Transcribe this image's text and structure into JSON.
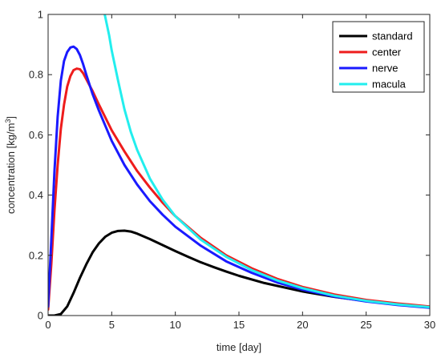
{
  "chart_data": {
    "type": "line",
    "title": "",
    "xlabel": "time [day]",
    "ylabel": "concentration [kg/m",
    "ylabel_superscript": "3",
    "ylabel_suffix": "]",
    "xlim": [
      0,
      30
    ],
    "ylim": [
      0,
      1
    ],
    "xticks": [
      "0",
      "5",
      "10",
      "15",
      "20",
      "25",
      "30"
    ],
    "yticks": [
      "0",
      "0.2",
      "0.4",
      "0.6",
      "0.8",
      "1"
    ],
    "grid": false,
    "legend_position": "top-right",
    "series": [
      {
        "name": "standard",
        "color": "#000000",
        "x": [
          0,
          0.5,
          1,
          1.5,
          2,
          2.5,
          3,
          3.5,
          4,
          4.5,
          5,
          5.5,
          6,
          6.5,
          7,
          8,
          9,
          10,
          11,
          12,
          13,
          14,
          15,
          17,
          20,
          22.5,
          25,
          27.5,
          30
        ],
        "y": [
          0,
          0,
          0.005,
          0.03,
          0.075,
          0.125,
          0.17,
          0.21,
          0.24,
          0.262,
          0.275,
          0.281,
          0.282,
          0.279,
          0.272,
          0.254,
          0.234,
          0.214,
          0.195,
          0.177,
          0.161,
          0.146,
          0.132,
          0.108,
          0.08,
          0.062,
          0.048,
          0.037,
          0.028
        ]
      },
      {
        "name": "center",
        "color": "#ee1c1c",
        "x": [
          0,
          0.25,
          0.5,
          0.75,
          1,
          1.25,
          1.5,
          1.75,
          2,
          2.25,
          2.5,
          2.75,
          3,
          3.5,
          4,
          5,
          6,
          7,
          8,
          9,
          10,
          12,
          14,
          16,
          18,
          20,
          22.5,
          25,
          27.5,
          30
        ],
        "y": [
          0.02,
          0.17,
          0.35,
          0.5,
          0.62,
          0.7,
          0.76,
          0.795,
          0.815,
          0.82,
          0.818,
          0.805,
          0.785,
          0.745,
          0.7,
          0.615,
          0.545,
          0.48,
          0.425,
          0.375,
          0.33,
          0.258,
          0.2,
          0.157,
          0.122,
          0.095,
          0.07,
          0.052,
          0.04,
          0.03
        ]
      },
      {
        "name": "nerve",
        "color": "#1a1aff",
        "x": [
          0,
          0.25,
          0.5,
          0.75,
          1,
          1.25,
          1.5,
          1.75,
          2,
          2.25,
          2.5,
          2.75,
          3,
          3.5,
          4,
          5,
          6,
          7,
          8,
          9,
          10,
          12,
          14,
          16,
          18,
          20,
          22.5,
          25,
          27.5,
          30
        ],
        "y": [
          0.03,
          0.25,
          0.48,
          0.66,
          0.78,
          0.845,
          0.875,
          0.89,
          0.893,
          0.885,
          0.865,
          0.835,
          0.8,
          0.735,
          0.68,
          0.58,
          0.5,
          0.435,
          0.38,
          0.335,
          0.295,
          0.232,
          0.18,
          0.142,
          0.11,
          0.086,
          0.063,
          0.047,
          0.035,
          0.026
        ]
      },
      {
        "name": "macula",
        "color": "#22eeee",
        "x": [
          4.45,
          4.6,
          4.8,
          5,
          5.5,
          6,
          6.5,
          7,
          8,
          9,
          10,
          12,
          14,
          16,
          18,
          20,
          22.5,
          25,
          27.5,
          30
        ],
        "y": [
          1.0,
          0.97,
          0.93,
          0.88,
          0.78,
          0.685,
          0.61,
          0.55,
          0.455,
          0.385,
          0.33,
          0.252,
          0.195,
          0.151,
          0.117,
          0.091,
          0.066,
          0.049,
          0.037,
          0.028
        ]
      }
    ]
  }
}
